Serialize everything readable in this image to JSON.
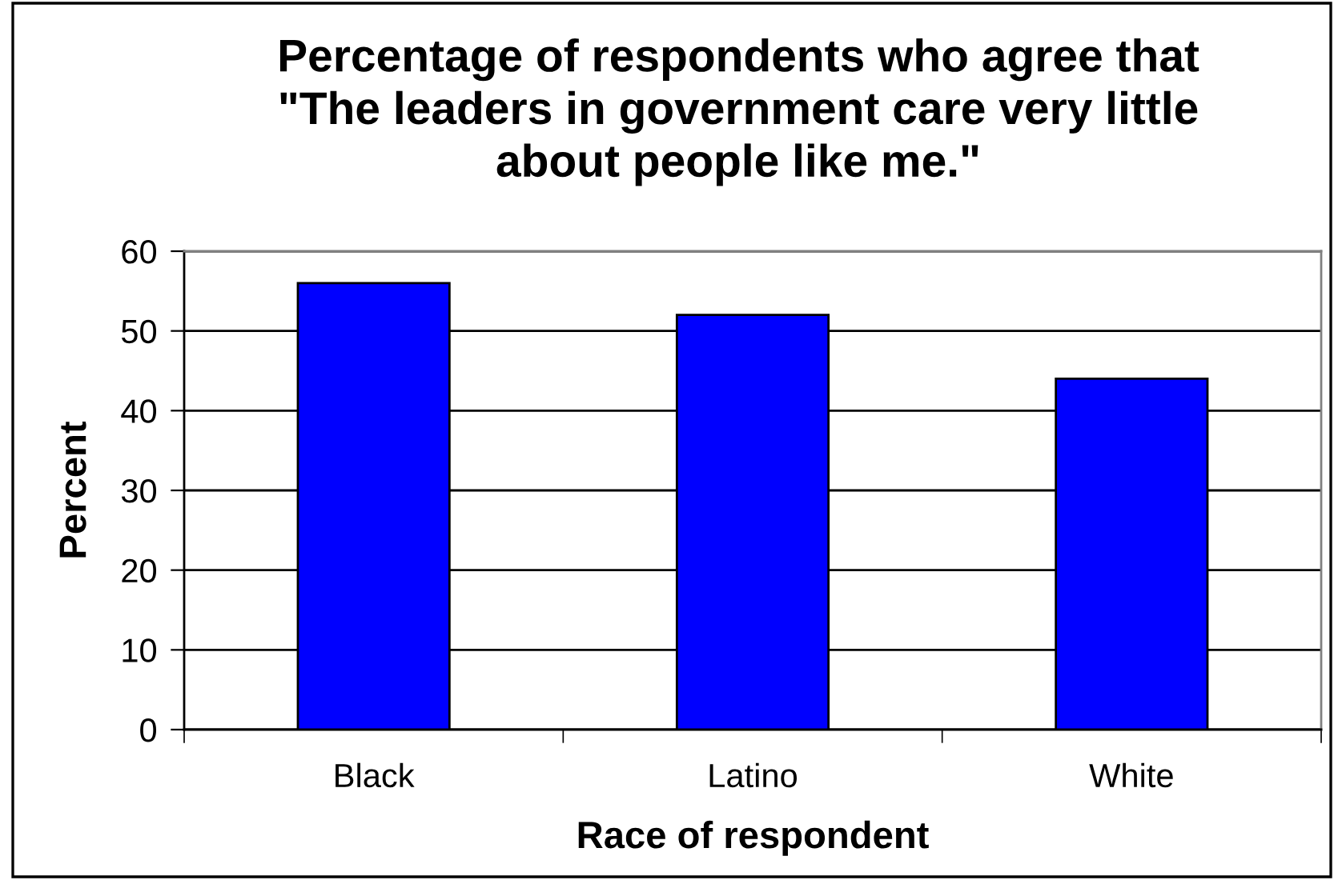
{
  "chart_data": {
    "type": "bar",
    "title": "Percentage of respondents who agree that\n\"The leaders in government care very little\nabout people like me.\"",
    "xlabel": "Race of respondent",
    "ylabel": "Percent",
    "categories": [
      "Black",
      "Latino",
      "White"
    ],
    "series": [
      {
        "color": "#0000ff",
        "values": [
          56,
          52,
          44
        ]
      }
    ],
    "ylim": [
      0,
      60
    ],
    "yticks": [
      0,
      10,
      20,
      30,
      40,
      50,
      60
    ],
    "grid": "y"
  }
}
